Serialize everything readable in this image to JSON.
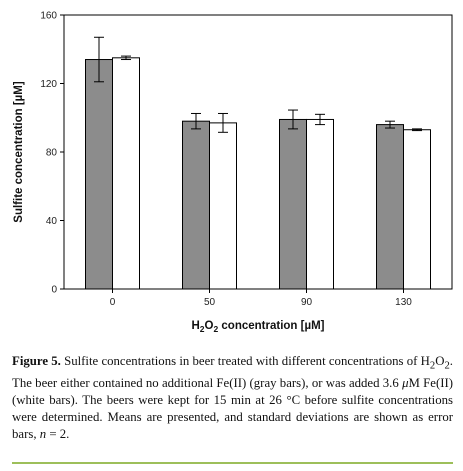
{
  "chart_data": {
    "type": "bar",
    "categories": [
      "0",
      "50",
      "90",
      "130"
    ],
    "series": [
      {
        "values": [
          134,
          98,
          99,
          96
        ],
        "errors": [
          13,
          4.5,
          5.5,
          2
        ],
        "color": "#8c8c8c"
      },
      {
        "values": [
          135,
          97,
          99,
          93
        ],
        "errors": [
          1,
          5.5,
          3,
          0.5
        ],
        "color": "#ffffff"
      }
    ],
    "ylim": [
      0,
      160
    ],
    "yticks": [
      "0",
      "40",
      "80",
      "120",
      "160"
    ],
    "ylabel": "Sulfite concentration [µM]",
    "xlabel_main": "H",
    "xlabel_sub": "2",
    "xlabel_main2": "O",
    "xlabel_sub2": "2",
    "xlabel_rest": " concentration [µM]"
  },
  "caption": {
    "label": "Figure 5.",
    "p1": " Sulfite concentrations in beer treated with different concentrations of H",
    "sub1": "2",
    "p2": "O",
    "sub2": "2",
    "p3": ". The beer either contained no additional Fe(II) (gray bars), or was added 3.6 ",
    "mu": "μ",
    "p4": "M Fe(II) (white bars). The beers were kept for 15 min at 26 °C before sulfite concentrations were determined. Means are presented, and standard deviations are shown as error bars, ",
    "n": "n",
    "p5": " = 2."
  }
}
